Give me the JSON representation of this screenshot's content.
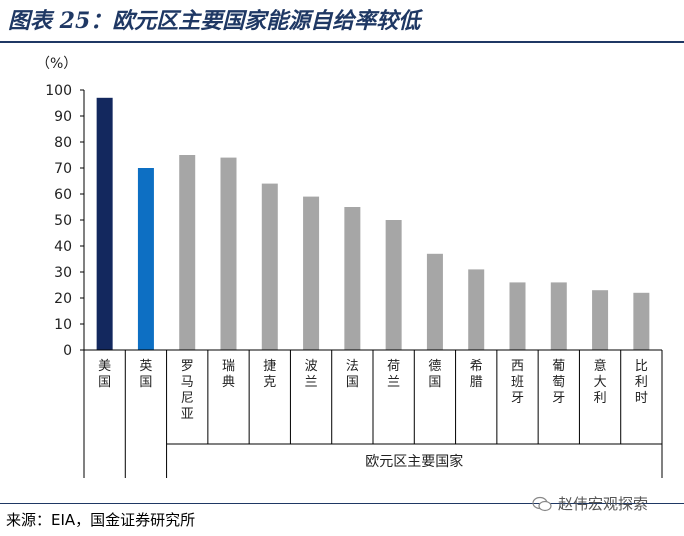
{
  "header": {
    "title": "图表 25：欧元区主要国家能源自给率较低"
  },
  "footer": {
    "source": "来源：EIA，国金证券研究所",
    "watermark": "赵伟宏观探索"
  },
  "chart_data": {
    "type": "bar",
    "ylabel": "（%）",
    "ylim": [
      0,
      100
    ],
    "yticks": [
      0,
      10,
      20,
      30,
      40,
      50,
      60,
      70,
      80,
      90,
      100
    ],
    "categories": [
      "美国",
      "英国",
      "罗马尼亚",
      "瑞典",
      "捷克",
      "波兰",
      "法国",
      "荷兰",
      "德国",
      "希腊",
      "西班牙",
      "葡萄牙",
      "意大利",
      "比利时"
    ],
    "values": [
      97,
      70,
      75,
      74,
      64,
      59,
      55,
      50,
      37,
      31,
      26,
      26,
      23,
      22
    ],
    "bar_colors": [
      "#13285e",
      "#0d6fc3",
      "#a6a6a6",
      "#a6a6a6",
      "#a6a6a6",
      "#a6a6a6",
      "#a6a6a6",
      "#a6a6a6",
      "#a6a6a6",
      "#a6a6a6",
      "#a6a6a6",
      "#a6a6a6",
      "#a6a6a6",
      "#a6a6a6"
    ],
    "group_label": "欧元区主要国家",
    "group_range": [
      2,
      13
    ],
    "grid": false
  }
}
